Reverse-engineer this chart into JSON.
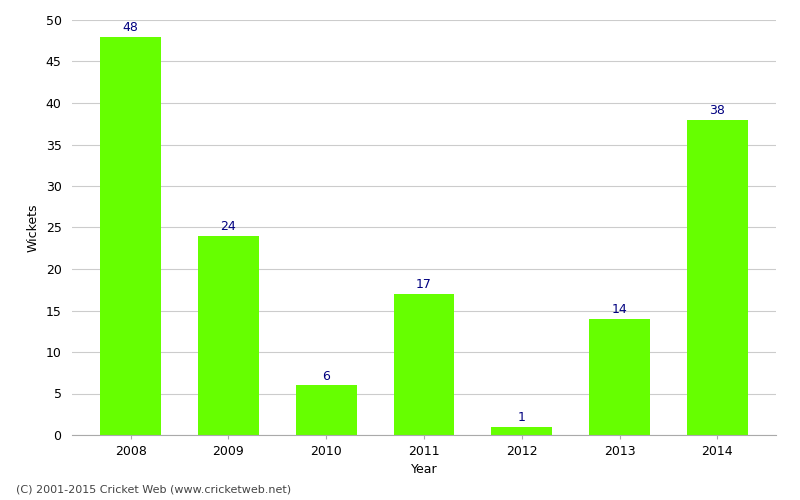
{
  "categories": [
    "2008",
    "2009",
    "2010",
    "2011",
    "2012",
    "2013",
    "2014"
  ],
  "values": [
    48,
    24,
    6,
    17,
    1,
    14,
    38
  ],
  "bar_color": "#66ff00",
  "label_color": "#000080",
  "xlabel": "Year",
  "ylabel": "Wickets",
  "ylim": [
    0,
    50
  ],
  "yticks": [
    0,
    5,
    10,
    15,
    20,
    25,
    30,
    35,
    40,
    45,
    50
  ],
  "background_color": "#ffffff",
  "grid_color": "#cccccc",
  "footer": "(C) 2001-2015 Cricket Web (www.cricketweb.net)",
  "bar_width": 0.62,
  "label_fontsize": 9,
  "axis_label_fontsize": 9,
  "tick_fontsize": 9,
  "footer_fontsize": 8
}
